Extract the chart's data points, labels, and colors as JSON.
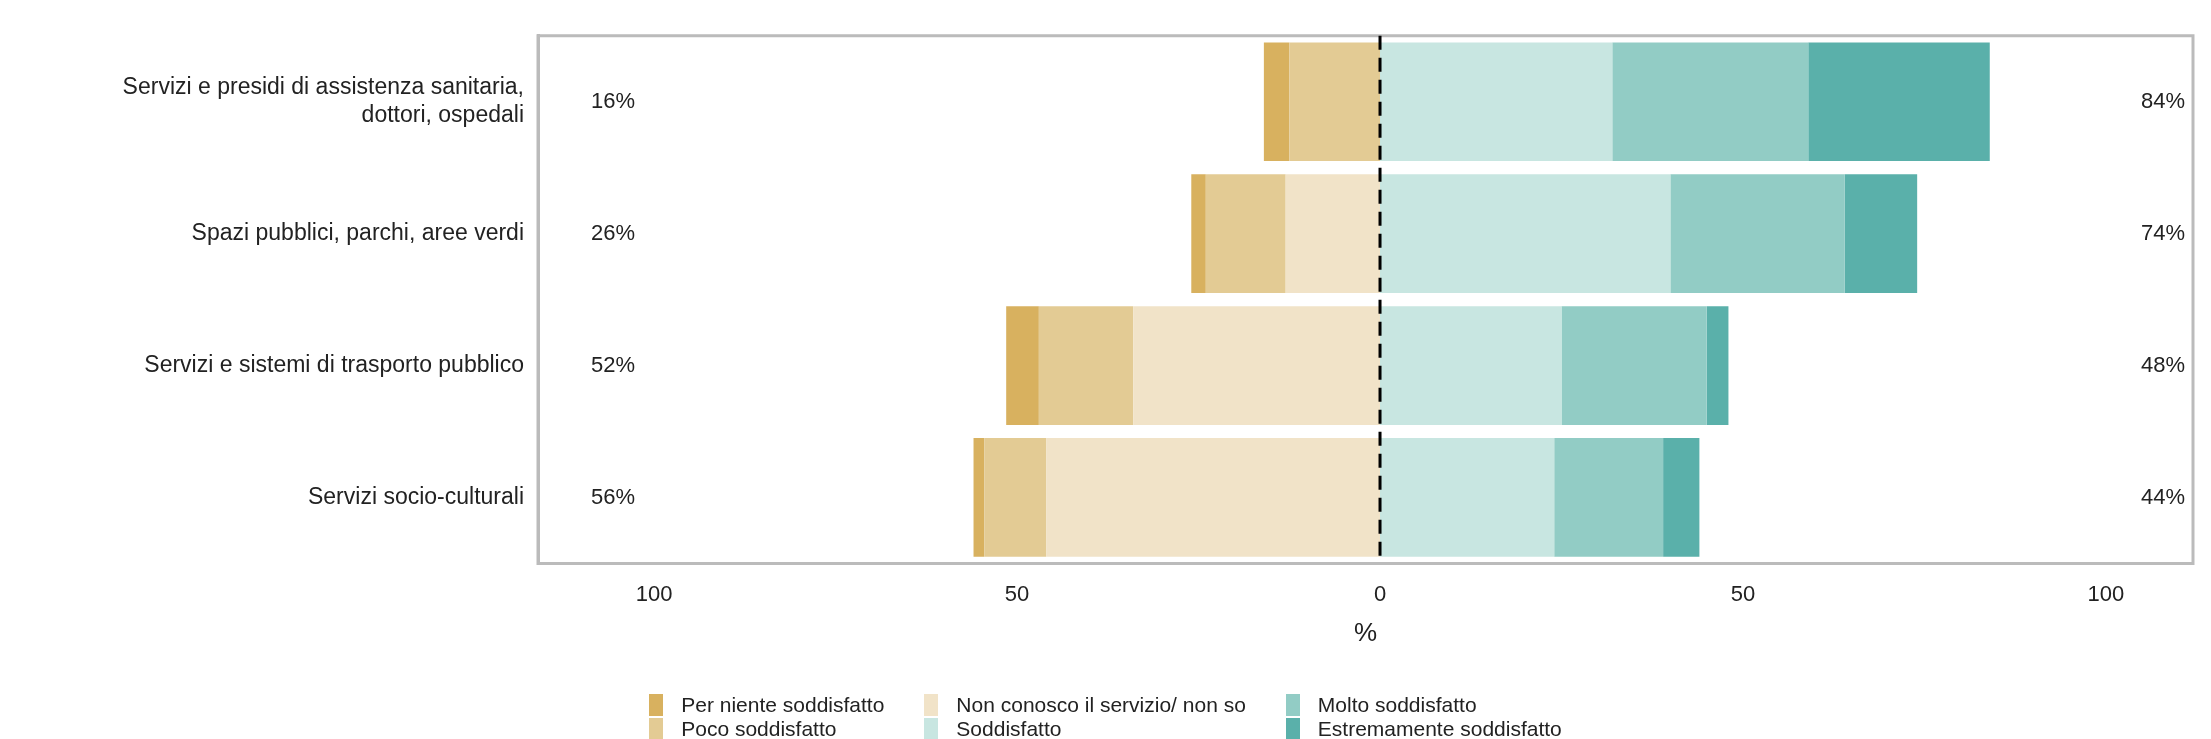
{
  "chart_data": {
    "type": "bar",
    "orientation": "horizontal",
    "stacked": true,
    "xlabel": "%",
    "categories": [
      "Servizi e presidi di assistenza sanitaria, dottori, ospedali",
      "Spazi pubblici, parchi, aree verdi",
      "Servizi e sistemi di trasporto pubblico",
      "Servizi socio-culturali"
    ],
    "series": [
      {
        "name": "Non conosco il servizio/ non so",
        "color": "#f1e3c8",
        "values": [
          0,
          -13,
          -34,
          -46
        ]
      },
      {
        "name": "Poco soddisfatto",
        "color": "#e3cb94",
        "values": [
          -12.5,
          -11,
          -13,
          -8.5
        ]
      },
      {
        "name": "Per niente soddisfatto",
        "color": "#d8b15f",
        "values": [
          -3.5,
          -2,
          -4.5,
          -1.5
        ]
      },
      {
        "name": "Soddisfatto",
        "color": "#c8e6e1",
        "values": [
          32,
          40,
          25,
          24
        ]
      },
      {
        "name": "Molto soddisfatto",
        "color": "#92ccc5",
        "values": [
          27,
          24,
          20,
          15
        ]
      },
      {
        "name": "Estremamente soddisfatto",
        "color": "#5ab0aa",
        "values": [
          25,
          10,
          3,
          5
        ]
      }
    ],
    "xlim": [
      -116,
      112
    ],
    "xticks": [
      {
        "value": -100,
        "label": "100"
      },
      {
        "value": -50,
        "label": "50"
      },
      0,
      50,
      100
    ],
    "ref_lines": [
      {
        "axis": "x",
        "value": 0,
        "color": "#000000",
        "line_style": "dashed"
      }
    ],
    "annotations": [
      "16%",
      "84%",
      "26%",
      "74%",
      "52%",
      "48%",
      "56%",
      "44%"
    ],
    "grid": false,
    "legend": "bottom"
  }
}
